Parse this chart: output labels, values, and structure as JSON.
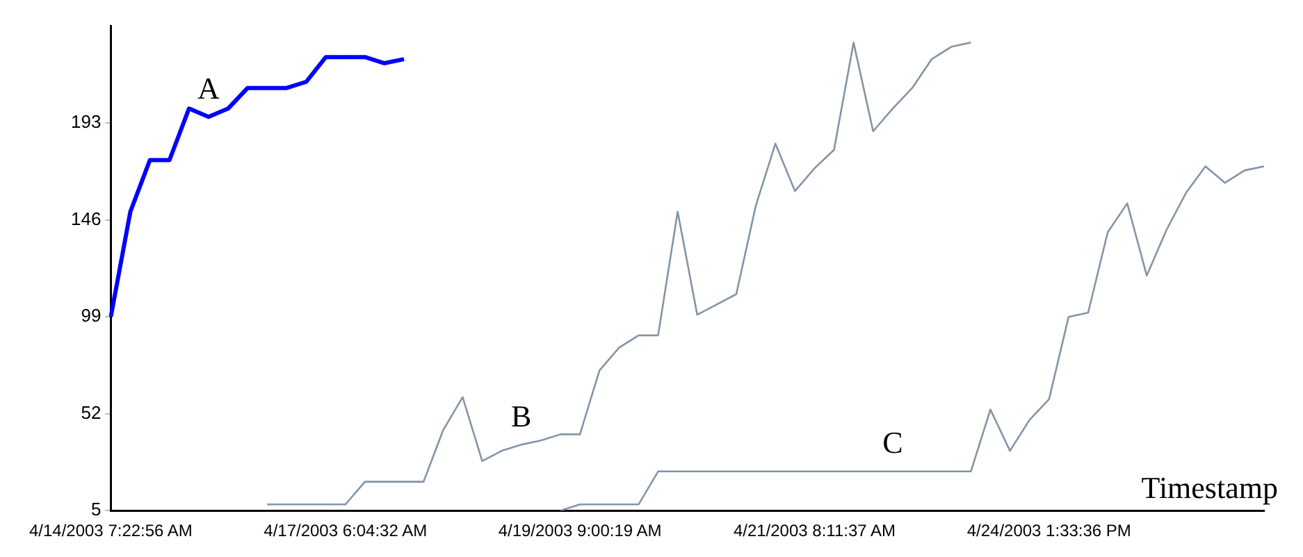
{
  "chart_data": {
    "type": "line",
    "xlabel": "Timestamp",
    "categories": [
      "4/14/2003 7:22:56 AM",
      null,
      null,
      null,
      null,
      null,
      null,
      null,
      null,
      null,
      null,
      null,
      "4/17/2003 6:04:32 AM",
      null,
      null,
      null,
      null,
      null,
      null,
      null,
      null,
      null,
      null,
      null,
      "4/19/2003 9:00:19 AM",
      null,
      null,
      null,
      null,
      null,
      null,
      null,
      null,
      null,
      null,
      null,
      "4/21/2003 8:11:37 AM",
      null,
      null,
      null,
      null,
      null,
      null,
      null,
      null,
      null,
      null,
      null,
      "4/24/2003 1:33:36 PM",
      null,
      null,
      null,
      null,
      null,
      null,
      null,
      null,
      null,
      null,
      null
    ],
    "ylim": [
      5,
      240
    ],
    "yticks": [
      5,
      52,
      99,
      146,
      193
    ],
    "grid": false,
    "legend": false,
    "marker": "none",
    "line_style": "solid",
    "series": [
      {
        "name": "A",
        "color": "#0000ff",
        "values": [
          99,
          150,
          175,
          175,
          200,
          196,
          200,
          210,
          210,
          210,
          213,
          225,
          225,
          225,
          222,
          224,
          null,
          null,
          null,
          null,
          null,
          null,
          null,
          null,
          null,
          null,
          null,
          null,
          null,
          null,
          null,
          null,
          null,
          null,
          null,
          null,
          null,
          null,
          null,
          null,
          null,
          null,
          null,
          null,
          null,
          null,
          null,
          null,
          null,
          null,
          null,
          null,
          null,
          null,
          null,
          null,
          null,
          null,
          null,
          null
        ]
      },
      {
        "name": "B",
        "color": "#8494a8",
        "values": [
          null,
          null,
          null,
          null,
          null,
          null,
          null,
          null,
          8,
          8,
          8,
          8,
          8,
          19,
          19,
          19,
          19,
          44,
          60,
          29,
          34,
          37,
          39,
          42,
          42,
          73,
          84,
          90,
          90,
          150,
          100,
          105,
          110,
          153,
          183,
          160,
          171,
          180,
          232,
          189,
          200,
          210,
          224,
          230,
          232,
          null,
          null,
          null,
          null,
          null,
          null,
          null,
          null,
          null,
          null,
          null,
          null,
          null,
          null,
          null
        ]
      },
      {
        "name": "C",
        "color": "#8494a8",
        "values": [
          null,
          null,
          null,
          null,
          null,
          null,
          null,
          null,
          null,
          null,
          null,
          null,
          null,
          null,
          null,
          null,
          null,
          null,
          null,
          null,
          null,
          null,
          null,
          5,
          8,
          8,
          8,
          8,
          24,
          24,
          24,
          24,
          24,
          24,
          24,
          24,
          24,
          24,
          24,
          24,
          24,
          24,
          24,
          24,
          24,
          54,
          34,
          49,
          59,
          99,
          101,
          140,
          154,
          119,
          141,
          159,
          172,
          164,
          170,
          172
        ]
      }
    ]
  }
}
